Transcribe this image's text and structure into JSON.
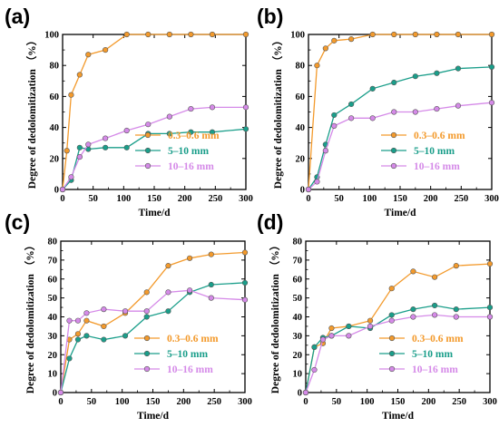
{
  "colors": {
    "0.3-0.6 mm": "#f39a2c",
    "5-10 mm": "#1a9e8a",
    "10-16 mm": "#d58ae8",
    "axis": "#000000"
  },
  "chart_data": [
    {
      "panel": "(a)",
      "type": "line",
      "xlabel": "Time/d",
      "ylabel": "Degree of dedolomitization",
      "yunit": "（%）",
      "xlim": [
        0,
        300
      ],
      "ylim": [
        0,
        100
      ],
      "xticks": [
        0,
        50,
        100,
        150,
        200,
        250,
        300
      ],
      "yticks": [
        0,
        20,
        40,
        60,
        80,
        100
      ],
      "legend_position": "lower-right",
      "series": [
        {
          "name": "0.3–0.6 mm",
          "color_key": "0.3-0.6 mm",
          "x": [
            0,
            7,
            14,
            28,
            42,
            70,
            105,
            140,
            175,
            210,
            245,
            300
          ],
          "y": [
            0,
            25,
            61,
            74,
            87,
            90,
            100,
            100,
            100,
            100,
            100,
            100
          ]
        },
        {
          "name": "5–10 mm",
          "color_key": "5-10 mm",
          "x": [
            0,
            14,
            28,
            42,
            70,
            105,
            140,
            175,
            210,
            245,
            300
          ],
          "y": [
            0,
            6,
            27,
            26,
            27,
            27,
            36,
            36,
            37,
            37,
            39
          ]
        },
        {
          "name": "10–16 mm",
          "color_key": "10-16 mm",
          "x": [
            0,
            14,
            28,
            42,
            70,
            105,
            140,
            175,
            210,
            245,
            300
          ],
          "y": [
            0,
            8,
            21,
            29,
            33,
            38,
            42,
            47,
            52,
            53,
            53
          ]
        }
      ]
    },
    {
      "panel": "(b)",
      "type": "line",
      "xlabel": "Time/d",
      "ylabel": "Degree of dedolomitization",
      "yunit": "（%）",
      "xlim": [
        0,
        300
      ],
      "ylim": [
        0,
        100
      ],
      "xticks": [
        0,
        50,
        100,
        150,
        200,
        250,
        300
      ],
      "yticks": [
        0,
        20,
        40,
        60,
        80,
        100
      ],
      "legend_position": "lower-right",
      "series": [
        {
          "name": "0.3–0.6 mm",
          "color_key": "0.3-0.6 mm",
          "x": [
            0,
            14,
            28,
            42,
            70,
            105,
            140,
            175,
            210,
            245,
            300
          ],
          "y": [
            0,
            80,
            91,
            96,
            97,
            100,
            100,
            100,
            100,
            100,
            100
          ]
        },
        {
          "name": "5–10 mm",
          "color_key": "5-10 mm",
          "x": [
            0,
            14,
            28,
            42,
            70,
            105,
            140,
            175,
            210,
            245,
            300
          ],
          "y": [
            0,
            8,
            29,
            48,
            55,
            65,
            69,
            73,
            75,
            78,
            79
          ]
        },
        {
          "name": "10–16 mm",
          "color_key": "10-16 mm",
          "x": [
            0,
            14,
            28,
            42,
            70,
            105,
            140,
            175,
            210,
            245,
            300
          ],
          "y": [
            0,
            5,
            25,
            41,
            46,
            46,
            50,
            50,
            52,
            54,
            56
          ]
        }
      ]
    },
    {
      "panel": "(c)",
      "type": "line",
      "xlabel": "Time/d",
      "ylabel": "Degree of dedolomitization",
      "yunit": "（%）",
      "xlim": [
        0,
        300
      ],
      "ylim": [
        0,
        80
      ],
      "xticks": [
        0,
        50,
        100,
        150,
        200,
        250,
        300
      ],
      "yticks": [
        0,
        10,
        20,
        30,
        40,
        50,
        60,
        70,
        80
      ],
      "legend_position": "lower-right",
      "series": [
        {
          "name": "0.3–0.6 mm",
          "color_key": "0.3-0.6 mm",
          "x": [
            0,
            14,
            28,
            42,
            70,
            105,
            140,
            175,
            210,
            245,
            300
          ],
          "y": [
            0,
            28,
            31,
            38,
            35,
            42,
            53,
            67,
            71,
            73,
            74
          ]
        },
        {
          "name": "5–10 mm",
          "color_key": "5-10 mm",
          "x": [
            0,
            14,
            28,
            42,
            70,
            105,
            140,
            175,
            210,
            245,
            300
          ],
          "y": [
            0,
            18,
            28,
            30,
            28,
            30,
            40,
            43,
            53,
            57,
            58
          ]
        },
        {
          "name": "10–16 mm",
          "color_key": "10-16 mm",
          "x": [
            0,
            14,
            28,
            42,
            70,
            105,
            140,
            175,
            210,
            245,
            300
          ],
          "y": [
            0,
            38,
            38,
            42,
            44,
            43,
            43,
            53,
            54,
            50,
            49
          ]
        }
      ]
    },
    {
      "panel": "(d)",
      "type": "line",
      "xlabel": "Time/d",
      "ylabel": "Degree of dedolomitization",
      "yunit": "（%）",
      "xlim": [
        0,
        300
      ],
      "ylim": [
        0,
        80
      ],
      "xticks": [
        0,
        50,
        100,
        150,
        200,
        250,
        300
      ],
      "yticks": [
        0,
        10,
        20,
        30,
        40,
        50,
        60,
        70,
        80
      ],
      "legend_position": "lower-right",
      "series": [
        {
          "name": "0.3–0.6 mm",
          "color_key": "0.3-0.6 mm",
          "x": [
            0,
            14,
            28,
            42,
            70,
            105,
            140,
            175,
            210,
            245,
            300
          ],
          "y": [
            0,
            24,
            26,
            34,
            35,
            38,
            55,
            64,
            61,
            67,
            68
          ]
        },
        {
          "name": "5–10 mm",
          "color_key": "5-10 mm",
          "x": [
            0,
            14,
            28,
            42,
            70,
            105,
            140,
            175,
            210,
            245,
            300
          ],
          "y": [
            0,
            24,
            29,
            30,
            35,
            34,
            41,
            44,
            46,
            44,
            45
          ]
        },
        {
          "name": "10–16 mm",
          "color_key": "10-16 mm",
          "x": [
            0,
            14,
            28,
            42,
            70,
            105,
            140,
            175,
            210,
            245,
            300
          ],
          "y": [
            0,
            12,
            28,
            30,
            30,
            35,
            38,
            40,
            41,
            40,
            40
          ]
        }
      ]
    }
  ]
}
